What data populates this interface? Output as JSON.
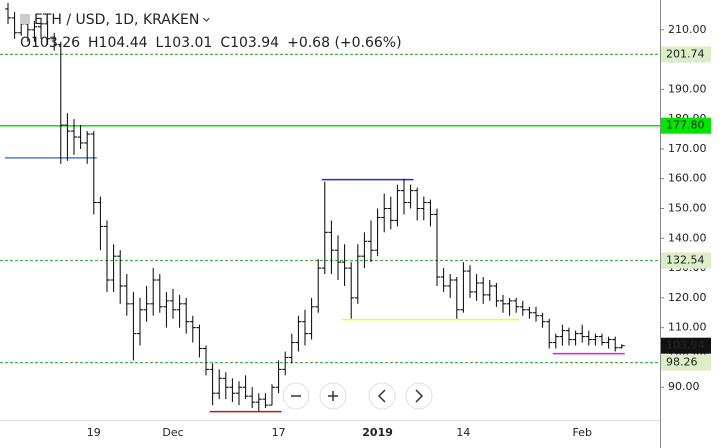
{
  "chart_data": {
    "type": "ohlc",
    "title": "ETH / USD, 1D, KRAKEN",
    "legend_text": [
      "O103.26",
      "H104.44",
      "L103.01",
      "C103.94",
      "+0.68 (+0.66%)"
    ],
    "color": "#000000",
    "grid": false,
    "ylim": [
      79,
      220
    ],
    "yticks": [
      {
        "value": 90,
        "label": "90.00"
      },
      {
        "value": 100,
        "label": "100.00"
      },
      {
        "value": 110,
        "label": "110.00"
      },
      {
        "value": 120,
        "label": "120.00"
      },
      {
        "value": 130,
        "label": "130.00"
      },
      {
        "value": 140,
        "label": "140.00"
      },
      {
        "value": 150,
        "label": "150.00"
      },
      {
        "value": 160,
        "label": "160.00"
      },
      {
        "value": 170,
        "label": "170.00"
      },
      {
        "value": 180,
        "label": "180.00"
      },
      {
        "value": 190,
        "label": "190.00"
      },
      {
        "value": 200,
        "label": "200.00"
      },
      {
        "value": 210,
        "label": "210.00"
      }
    ],
    "categories": [
      null,
      null,
      null,
      null,
      null,
      null,
      null,
      null,
      null,
      null,
      null,
      null,
      null,
      "19",
      null,
      null,
      null,
      null,
      null,
      null,
      null,
      null,
      null,
      null,
      null,
      "Dec",
      null,
      null,
      null,
      null,
      null,
      null,
      null,
      null,
      null,
      null,
      null,
      null,
      null,
      null,
      null,
      "17",
      null,
      null,
      null,
      null,
      null,
      null,
      null,
      null,
      null,
      null,
      null,
      null,
      null,
      null,
      "2019",
      null,
      null,
      null,
      null,
      null,
      null,
      null,
      null,
      null,
      null,
      null,
      null,
      "14",
      null,
      null,
      null,
      null,
      null,
      null,
      null,
      null,
      null,
      null,
      null,
      null,
      null,
      null,
      null,
      null,
      null,
      "Feb",
      null,
      null,
      null,
      null,
      null,
      null
    ],
    "ohlc": [
      [
        217,
        219,
        212,
        214
      ],
      [
        214,
        216,
        207,
        209
      ],
      [
        209,
        215,
        208,
        212
      ],
      [
        212,
        214,
        206,
        210
      ],
      [
        210,
        213,
        206,
        211
      ],
      [
        211,
        214,
        207,
        212
      ],
      [
        212,
        213,
        205,
        207
      ],
      [
        207,
        209,
        203,
        205
      ],
      [
        205,
        206,
        165,
        178
      ],
      [
        178,
        182,
        166,
        176
      ],
      [
        176,
        180,
        168,
        174
      ],
      [
        174,
        178,
        170,
        172
      ],
      [
        172,
        176,
        165,
        175
      ],
      [
        175,
        176,
        148,
        152
      ],
      [
        152,
        154,
        136,
        144
      ],
      [
        144,
        146,
        122,
        126
      ],
      [
        126,
        138,
        122,
        134
      ],
      [
        134,
        136,
        118,
        124
      ],
      [
        124,
        128,
        114,
        118
      ],
      [
        118,
        122,
        99,
        108
      ],
      [
        108,
        120,
        104,
        116
      ],
      [
        116,
        124,
        112,
        118
      ],
      [
        118,
        130,
        114,
        126
      ],
      [
        126,
        128,
        115,
        117
      ],
      [
        117,
        122,
        110,
        119
      ],
      [
        119,
        123,
        113,
        116
      ],
      [
        116,
        121,
        110,
        118
      ],
      [
        118,
        120,
        108,
        112
      ],
      [
        112,
        114,
        105,
        110
      ],
      [
        110,
        111,
        100,
        103
      ],
      [
        103,
        104,
        94,
        96
      ],
      [
        96,
        98,
        84,
        88
      ],
      [
        88,
        96,
        86,
        93
      ],
      [
        93,
        95,
        86,
        90
      ],
      [
        90,
        93,
        85,
        88
      ],
      [
        88,
        92,
        84,
        90
      ],
      [
        90,
        94,
        86,
        87
      ],
      [
        87,
        90,
        83,
        85
      ],
      [
        85,
        88,
        82,
        86
      ],
      [
        86,
        88,
        83,
        84
      ],
      [
        84,
        91,
        84,
        90
      ],
      [
        90,
        99,
        88,
        96
      ],
      [
        96,
        102,
        94,
        100
      ],
      [
        100,
        108,
        98,
        105
      ],
      [
        105,
        114,
        102,
        112
      ],
      [
        112,
        116,
        104,
        108
      ],
      [
        108,
        120,
        106,
        117
      ],
      [
        117,
        133,
        115,
        130
      ],
      [
        130,
        159,
        128,
        142
      ],
      [
        142,
        146,
        128,
        136
      ],
      [
        136,
        141,
        126,
        132
      ],
      [
        132,
        138,
        124,
        130
      ],
      [
        130,
        132,
        113,
        120
      ],
      [
        120,
        138,
        118,
        134
      ],
      [
        134,
        142,
        130,
        139
      ],
      [
        139,
        146,
        132,
        136
      ],
      [
        136,
        150,
        134,
        147
      ],
      [
        147,
        155,
        142,
        150
      ],
      [
        150,
        154,
        143,
        146
      ],
      [
        146,
        158,
        144,
        156
      ],
      [
        156,
        160,
        148,
        152
      ],
      [
        152,
        158,
        150,
        156
      ],
      [
        156,
        157,
        146,
        150
      ],
      [
        150,
        154,
        146,
        152
      ],
      [
        152,
        153,
        144,
        148
      ],
      [
        148,
        150,
        124,
        127
      ],
      [
        127,
        130,
        122,
        124
      ],
      [
        124,
        128,
        120,
        126
      ],
      [
        126,
        127,
        113,
        116
      ],
      [
        116,
        132,
        115,
        129
      ],
      [
        129,
        131,
        120,
        122
      ],
      [
        122,
        128,
        119,
        125
      ],
      [
        125,
        127,
        118,
        121
      ],
      [
        121,
        126,
        119,
        124
      ],
      [
        124,
        125,
        117,
        119
      ],
      [
        119,
        121,
        115,
        118
      ],
      [
        118,
        120,
        114,
        119
      ],
      [
        119,
        120,
        115,
        117
      ],
      [
        117,
        119,
        114,
        116
      ],
      [
        116,
        117,
        113,
        115
      ],
      [
        115,
        117,
        112,
        114
      ],
      [
        114,
        115,
        110,
        112
      ],
      [
        112,
        113,
        103,
        105
      ],
      [
        105,
        108,
        103,
        107
      ],
      [
        107,
        111,
        104,
        109
      ],
      [
        109,
        110,
        104,
        106
      ],
      [
        106,
        109,
        104,
        108
      ],
      [
        108,
        111,
        105,
        107
      ],
      [
        107,
        109,
        104,
        106
      ],
      [
        106,
        108,
        104,
        107
      ],
      [
        107,
        108,
        104,
        105
      ],
      [
        105,
        107,
        103,
        106
      ],
      [
        106,
        107,
        102,
        103.26
      ],
      [
        103.26,
        104.44,
        103.01,
        103.94
      ]
    ],
    "levels": {
      "values": [
        201.74,
        177.8,
        132.54,
        98.26
      ],
      "value_labels": [
        "201.74",
        "177.80",
        "132.54",
        "98.26"
      ],
      "colors": [
        "#4caf50",
        "#00e600",
        "#4caf50",
        "#4caf50"
      ],
      "styles": [
        "dashed",
        "solid",
        "dashed",
        "dashed"
      ],
      "label_backgrounds": [
        "#dcedc8",
        "#00e600",
        "#dcedc8",
        "#dcedc8"
      ]
    },
    "drawings": [
      {
        "color": "#4a7fd4",
        "value": 167,
        "start": 0,
        "end": 13
      },
      {
        "color": "#1a2fd6",
        "value": 159.7,
        "start": 48,
        "end": 61
      },
      {
        "color": "#ffee33",
        "value": 112.7,
        "start": 51,
        "end": 77
      },
      {
        "color": "#c0161b",
        "value": 81.8,
        "start": 31,
        "end": 41
      },
      {
        "color": "#e020d0",
        "value": 101.3,
        "start": 83,
        "end": 93
      }
    ]
  }
}
